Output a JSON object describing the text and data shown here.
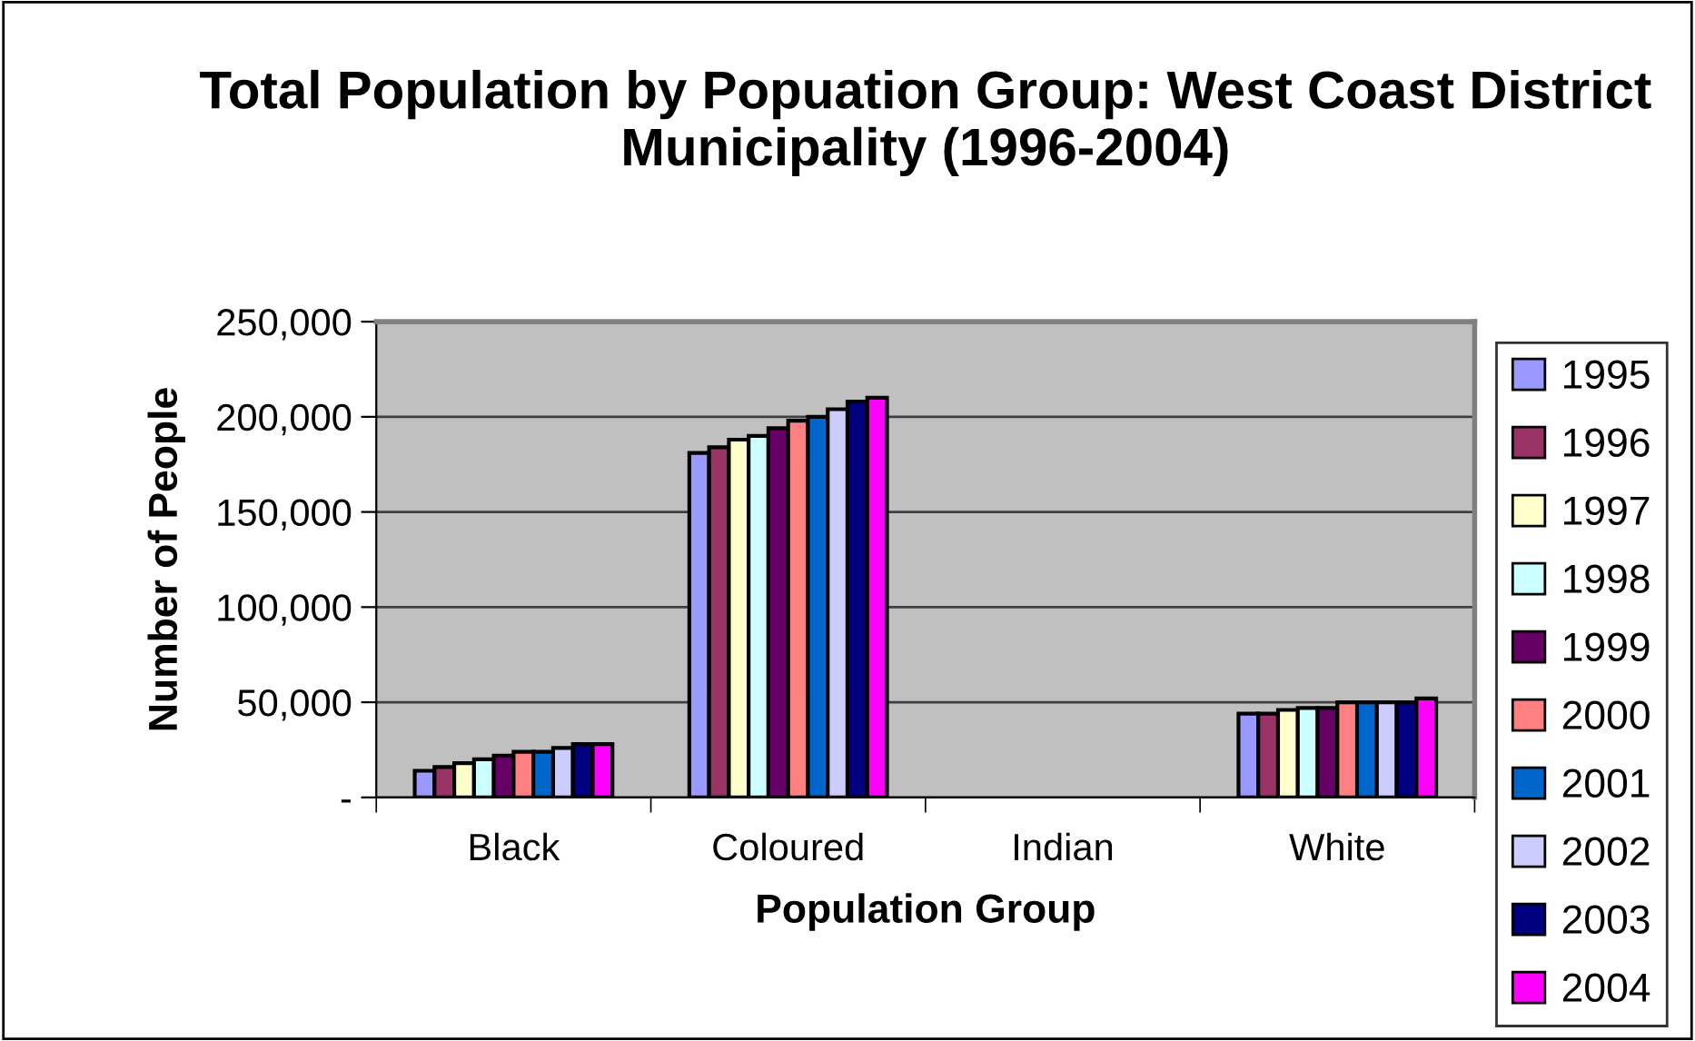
{
  "chart_data": {
    "type": "bar",
    "title": "Total Population by Popuation Group: West Coast District Municipality (1996-2004)",
    "xlabel": "Population Group",
    "ylabel": "Number of People",
    "categories": [
      "Black",
      "Coloured",
      "Indian",
      "White"
    ],
    "series": [
      {
        "name": "1995",
        "color": "#9999ff",
        "values": [
          14000,
          181000,
          null,
          44000
        ]
      },
      {
        "name": "1996",
        "color": "#993366",
        "values": [
          16000,
          184000,
          null,
          44000
        ]
      },
      {
        "name": "1997",
        "color": "#ffffcc",
        "values": [
          18000,
          188000,
          null,
          46000
        ]
      },
      {
        "name": "1998",
        "color": "#ccffff",
        "values": [
          20000,
          190000,
          null,
          47000
        ]
      },
      {
        "name": "1999",
        "color": "#660066",
        "values": [
          22000,
          194000,
          null,
          47000
        ]
      },
      {
        "name": "2000",
        "color": "#ff8080",
        "values": [
          24000,
          198000,
          null,
          50000
        ]
      },
      {
        "name": "2001",
        "color": "#0066cc",
        "values": [
          24000,
          200000,
          null,
          50000
        ]
      },
      {
        "name": "2002",
        "color": "#ccccff",
        "values": [
          26000,
          204000,
          null,
          50000
        ]
      },
      {
        "name": "2003",
        "color": "#000080",
        "values": [
          28000,
          208000,
          null,
          50000
        ]
      },
      {
        "name": "2004",
        "color": "#ff00ff",
        "values": [
          28000,
          210000,
          null,
          52000
        ]
      }
    ],
    "ylim": [
      0,
      250000
    ],
    "yticks": [
      {
        "value": 0,
        "label": "-"
      },
      {
        "value": 50000,
        "label": "50,000"
      },
      {
        "value": 100000,
        "label": "100,000"
      },
      {
        "value": 150000,
        "label": "150,000"
      },
      {
        "value": 200000,
        "label": "200,000"
      },
      {
        "value": 250000,
        "label": "250,000"
      }
    ],
    "grid": "y",
    "legend": "right"
  }
}
